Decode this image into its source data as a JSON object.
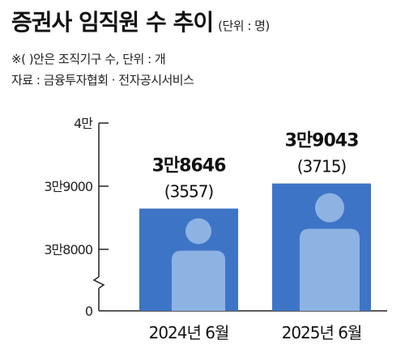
{
  "header": {
    "title": "증권사 임직원 수 추이",
    "unit": "(단위 : 명)",
    "note": "※(   )안은 조직기구 수, 단위 : 개",
    "source": "자료 : 금융투자협회 · 전자공시서비스"
  },
  "chart_data": {
    "type": "bar",
    "categories": [
      "2024년 6월",
      "2025년 6월"
    ],
    "values": [
      38646,
      39043
    ],
    "value_labels": [
      "3만8646",
      "3만9043"
    ],
    "sub_values": [
      3557,
      3715
    ],
    "sub_labels": [
      "(3557)",
      "(3715)"
    ],
    "y_ticks": [
      {
        "value": 0,
        "label": "0"
      },
      {
        "value": 38000,
        "label": "3만8000"
      },
      {
        "value": 39000,
        "label": "3만9000"
      },
      {
        "value": 40000,
        "label": "4만"
      }
    ],
    "ylim": [
      37000,
      40000
    ],
    "axis_break": true,
    "grid": false,
    "colors": {
      "bar": "#3e74c6",
      "figure": "#8db3e3",
      "axis": "#222222"
    },
    "bar_icon": "person-icon"
  }
}
